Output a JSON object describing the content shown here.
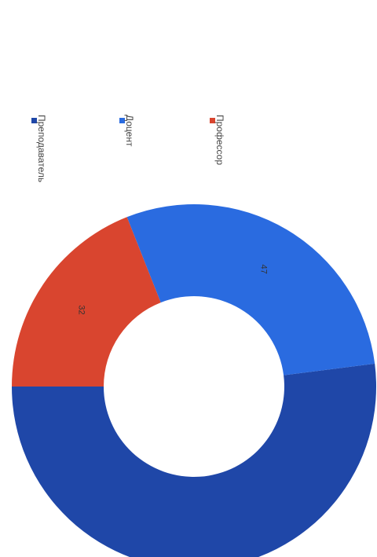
{
  "chart_data": {
    "type": "pie",
    "variant": "donut",
    "orientation": "image rotated 90° clockwise",
    "title": "",
    "legend_position": "top",
    "slices": [
      {
        "label": "Преподаватель",
        "value": 52,
        "display_label": "",
        "color": "#1f47a8"
      },
      {
        "label": "Доцент",
        "value": 29,
        "display_label": "47",
        "color": "#2a6be0"
      },
      {
        "label": "Профессор",
        "value": 19,
        "display_label": "32",
        "color": "#d9452f"
      }
    ]
  }
}
